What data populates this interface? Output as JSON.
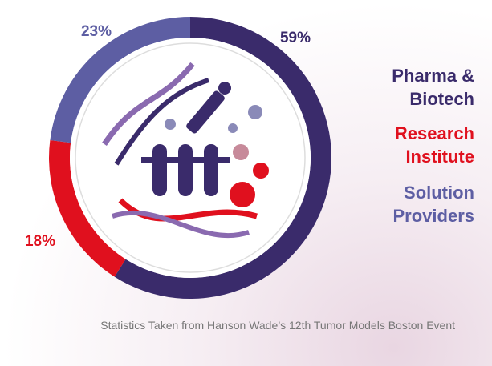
{
  "chart_data": {
    "type": "pie",
    "categories": [
      "Pharma & Biotech",
      "Research Institute",
      "Solution Providers"
    ],
    "values": [
      59,
      18,
      23
    ],
    "value_labels": [
      "59%",
      "18%",
      "23%"
    ],
    "colors": [
      "#3a2b6b",
      "#e0101e",
      "#5d5ea3"
    ],
    "caption": "Statistics Taken from Hanson Wade’s 12th Tumor Models Boston Event"
  }
}
